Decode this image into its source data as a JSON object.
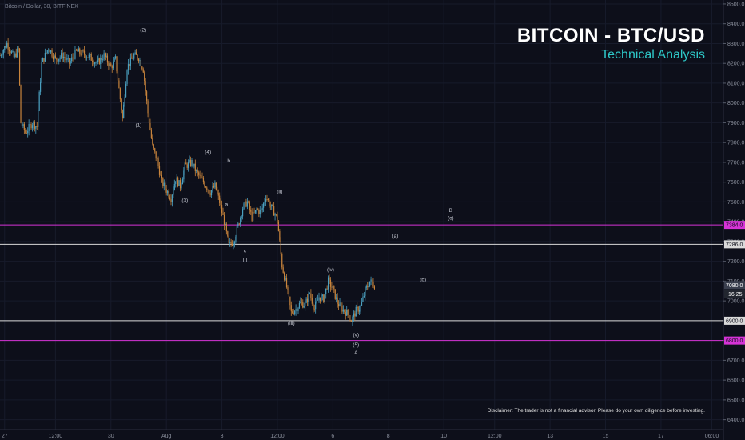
{
  "header": {
    "symbol_label": "Bitcoin / Dollar, 30, BITFINEX",
    "title": "BITCOIN - BTC/USD",
    "subtitle": "Technical Analysis"
  },
  "disclaimer": "Disclaimer: The trader is not a financial advisor. Please do your own diligence before investing.",
  "colors": {
    "background": "#0d0f1a",
    "grid": "#171b2b",
    "candle_up": "#4a9fbf",
    "candle_down": "#c8843c",
    "magenta_level": "#d633d6",
    "white_level": "#d9d9d9",
    "title": "#ffffff",
    "subtitle": "#2ec9c9"
  },
  "chart_data": {
    "type": "candlestick",
    "ylim": [
      6350,
      8520
    ],
    "y_ticks": [
      6400,
      6500,
      6600,
      6700,
      6800,
      6900,
      7000,
      7100,
      7200,
      7300,
      7400,
      7500,
      7600,
      7700,
      7800,
      7900,
      8000,
      8100,
      8200,
      8300,
      8400,
      8500
    ],
    "y_tick_labels": [
      "6400.0",
      "6500.0",
      "6600.0",
      "6700.0",
      "6800.0",
      "6900.0",
      "7000.0",
      "7100.0",
      "7200.0",
      "7300.0",
      "7400.0",
      "7500.0",
      "7600.0",
      "7700.0",
      "7800.0",
      "7900.0",
      "8000.0",
      "8100.0",
      "8200.0",
      "8300.0",
      "8400.0",
      "8500.0"
    ],
    "x_ticks": [
      {
        "label": "27",
        "bars": 2
      },
      {
        "label": "12:00",
        "bars": 24
      },
      {
        "label": "30",
        "bars": 48
      },
      {
        "label": "Aug",
        "bars": 72
      },
      {
        "label": "3",
        "bars": 96
      },
      {
        "label": "12:00",
        "bars": 120
      },
      {
        "label": "6",
        "bars": 144
      },
      {
        "label": "8",
        "bars": 168
      },
      {
        "label": "10",
        "bars": 192
      },
      {
        "label": "12:00",
        "bars": 214
      },
      {
        "label": "13",
        "bars": 238
      },
      {
        "label": "15",
        "bars": 262
      },
      {
        "label": "17",
        "bars": 286
      },
      {
        "label": "06:00",
        "bars": 308
      }
    ],
    "x_range_bars": [
      0,
      313
    ],
    "price_path": [
      [
        0,
        8240
      ],
      [
        3,
        8300
      ],
      [
        6,
        8230
      ],
      [
        8,
        8270
      ],
      [
        9,
        7900
      ],
      [
        11,
        7850
      ],
      [
        14,
        7900
      ],
      [
        16,
        7880
      ],
      [
        18,
        8200
      ],
      [
        21,
        8280
      ],
      [
        24,
        8220
      ],
      [
        27,
        8240
      ],
      [
        30,
        8200
      ],
      [
        33,
        8260
      ],
      [
        36,
        8250
      ],
      [
        39,
        8230
      ],
      [
        42,
        8200
      ],
      [
        45,
        8240
      ],
      [
        48,
        8180
      ],
      [
        50,
        8220
      ],
      [
        53,
        7920
      ],
      [
        55,
        8180
      ],
      [
        58,
        8240
      ],
      [
        60,
        8230
      ],
      [
        62,
        8170
      ],
      [
        64,
        7950
      ],
      [
        66,
        7780
      ],
      [
        68,
        7710
      ],
      [
        70,
        7600
      ],
      [
        72,
        7560
      ],
      [
        74,
        7520
      ],
      [
        76,
        7620
      ],
      [
        78,
        7580
      ],
      [
        80,
        7680
      ],
      [
        83,
        7700
      ],
      [
        85,
        7650
      ],
      [
        88,
        7600
      ],
      [
        91,
        7550
      ],
      [
        93,
        7580
      ],
      [
        95,
        7500
      ],
      [
        97,
        7400
      ],
      [
        99,
        7280
      ],
      [
        101,
        7300
      ],
      [
        103,
        7380
      ],
      [
        105,
        7470
      ],
      [
        107,
        7500
      ],
      [
        109,
        7420
      ],
      [
        111,
        7460
      ],
      [
        113,
        7450
      ],
      [
        115,
        7530
      ],
      [
        117,
        7480
      ],
      [
        119,
        7440
      ],
      [
        120,
        7410
      ],
      [
        122,
        7180
      ],
      [
        124,
        7070
      ],
      [
        126,
        6940
      ],
      [
        128,
        6960
      ],
      [
        130,
        6990
      ],
      [
        132,
        6980
      ],
      [
        134,
        7040
      ],
      [
        136,
        6960
      ],
      [
        138,
        7020
      ],
      [
        140,
        7010
      ],
      [
        142,
        7100
      ],
      [
        144,
        7060
      ],
      [
        146,
        6990
      ],
      [
        148,
        6960
      ],
      [
        150,
        6940
      ],
      [
        152,
        6900
      ],
      [
        154,
        6950
      ],
      [
        156,
        6970
      ],
      [
        158,
        7050
      ],
      [
        160,
        7100
      ],
      [
        162,
        7080
      ]
    ],
    "levels": [
      {
        "price": 7384,
        "label": "7384.0",
        "color": "#d633d6"
      },
      {
        "price": 7286,
        "label": "7286.0",
        "color": "#d9d9d9"
      },
      {
        "price": 6900,
        "label": "6900.0",
        "color": "#d9d9d9"
      },
      {
        "price": 6800,
        "label": "6800.0",
        "color": "#d633d6"
      }
    ],
    "current_price": {
      "value": 7080,
      "label": "7080.0",
      "countdown": "16:25"
    },
    "wave_labels": [
      {
        "text": "(1)",
        "bar": 60,
        "price": 7880
      },
      {
        "text": "(2)",
        "bar": 62,
        "price": 8360
      },
      {
        "text": "(3)",
        "bar": 80,
        "price": 7500
      },
      {
        "text": "(4)",
        "bar": 90,
        "price": 7745
      },
      {
        "text": "b",
        "bar": 99,
        "price": 7700
      },
      {
        "text": "a",
        "bar": 98,
        "price": 7480
      },
      {
        "text": "c",
        "bar": 106,
        "price": 7245
      },
      {
        "text": "(i)",
        "bar": 106,
        "price": 7200
      },
      {
        "text": "(ii)",
        "bar": 121,
        "price": 7545
      },
      {
        "text": "(iii)",
        "bar": 126,
        "price": 6880
      },
      {
        "text": "(iv)",
        "bar": 143,
        "price": 7150
      },
      {
        "text": "(v)",
        "bar": 154,
        "price": 6820
      },
      {
        "text": "(5)",
        "bar": 154,
        "price": 6770
      },
      {
        "text": "A",
        "bar": 154,
        "price": 6730
      },
      {
        "text": "(a)",
        "bar": 171,
        "price": 7320
      },
      {
        "text": "(b)",
        "bar": 183,
        "price": 7100
      },
      {
        "text": "B",
        "bar": 195,
        "price": 7450
      },
      {
        "text": "(c)",
        "bar": 195,
        "price": 7410
      }
    ]
  }
}
